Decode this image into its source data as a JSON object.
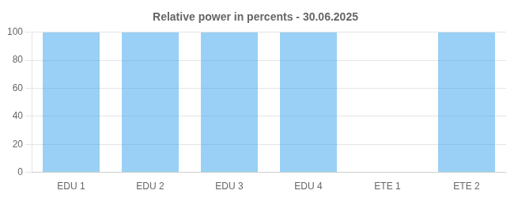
{
  "chart_data": {
    "type": "bar",
    "title": "Relative power in percents - 30.06.2025",
    "categories": [
      "EDU 1",
      "EDU 2",
      "EDU 3",
      "EDU 4",
      "ETE 1",
      "ETE 2"
    ],
    "values": [
      100,
      100,
      100,
      100,
      0,
      100
    ],
    "ylim": [
      0,
      100
    ],
    "yticks": [
      0,
      20,
      40,
      60,
      80,
      100
    ],
    "grid": true
  }
}
